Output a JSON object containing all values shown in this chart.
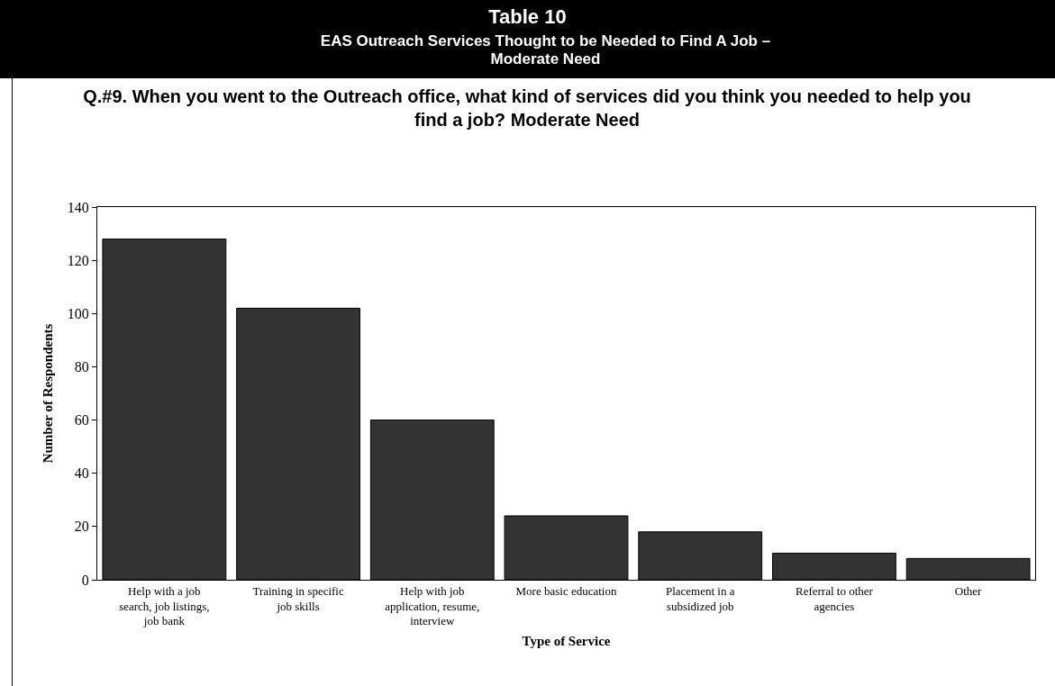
{
  "chart_data": {
    "type": "bar",
    "title": "Table 10",
    "subtitle": "EAS Outreach Services Thought to be Needed to Find A Job – Moderate Need",
    "annotations": [
      "Q.#9.  When you went to the Outreach office, what kind of services did you think you needed to help you find a job? Moderate Need"
    ],
    "xlabel": "Type of Service",
    "ylabel": "Number of Respondents",
    "categories": [
      "Help with a job search, job listings, job bank",
      "Training in specific job skills",
      "Help with job application, resume, interview",
      "More basic education",
      "Placement in a subsidized job",
      "Referral to other agencies",
      "Other"
    ],
    "values": [
      128,
      102,
      60,
      24,
      18,
      10,
      8
    ],
    "color": "#333333",
    "ylim": [
      0,
      140
    ],
    "yticks": [
      0,
      20,
      40,
      60,
      80,
      100,
      120,
      140
    ],
    "grid": false
  }
}
